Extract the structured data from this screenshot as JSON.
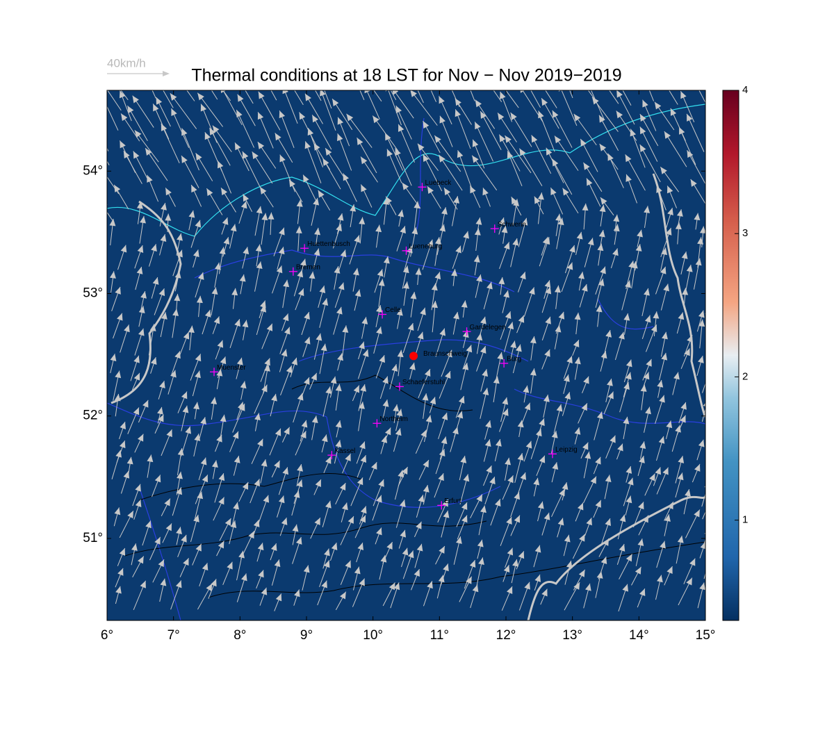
{
  "map": {
    "title": "Thermal conditions at 18 LST for Nov − Nov  2019−2019",
    "reference_arrow_label": "40km/h",
    "xlim": [
      6,
      15
    ],
    "ylim": [
      50.33,
      54.66
    ],
    "xticks": [
      {
        "value": 6,
        "label": "6°"
      },
      {
        "value": 7,
        "label": "7°"
      },
      {
        "value": 8,
        "label": "8°"
      },
      {
        "value": 9,
        "label": "9°"
      },
      {
        "value": 10,
        "label": "10°"
      },
      {
        "value": 11,
        "label": "11°"
      },
      {
        "value": 12,
        "label": "12°"
      },
      {
        "value": 13,
        "label": "13°"
      },
      {
        "value": 14,
        "label": "14°"
      },
      {
        "value": 15,
        "label": "15°"
      }
    ],
    "yticks": [
      {
        "value": 51,
        "label": "51°"
      },
      {
        "value": 52,
        "label": "52°"
      },
      {
        "value": 53,
        "label": "53°"
      },
      {
        "value": 54,
        "label": "54°"
      }
    ],
    "colorbar": {
      "clim": [
        0.3,
        4.0
      ],
      "ticks": [
        1,
        2,
        3,
        4
      ]
    },
    "site": {
      "name": "Braunschweig",
      "lon": 10.61,
      "lat": 52.49,
      "color": "#ff0000"
    },
    "cities": [
      {
        "name": "Luebeck",
        "lon": 10.74,
        "lat": 53.87
      },
      {
        "name": "Schwerin",
        "lon": 11.83,
        "lat": 53.53
      },
      {
        "name": "Huettenbusch",
        "lon": 8.97,
        "lat": 53.37
      },
      {
        "name": "Lueneburg",
        "lon": 10.5,
        "lat": 53.35
      },
      {
        "name": "Bremen",
        "lon": 8.8,
        "lat": 53.18
      },
      {
        "name": "Celle",
        "lon": 10.14,
        "lat": 52.83
      },
      {
        "name": "Gardelegen",
        "lon": 11.41,
        "lat": 52.69
      },
      {
        "name": "Burg",
        "lon": 11.97,
        "lat": 52.43
      },
      {
        "name": "Muenster",
        "lon": 7.61,
        "lat": 52.36
      },
      {
        "name": "Schaeferstuhl",
        "lon": 10.4,
        "lat": 52.24
      },
      {
        "name": "Northeim",
        "lon": 10.06,
        "lat": 51.94
      },
      {
        "name": "Kassel",
        "lon": 9.38,
        "lat": 51.68
      },
      {
        "name": "Leipzig",
        "lon": 12.7,
        "lat": 51.69
      },
      {
        "name": "Erfurt",
        "lon": 11.03,
        "lat": 51.27
      }
    ]
  }
}
